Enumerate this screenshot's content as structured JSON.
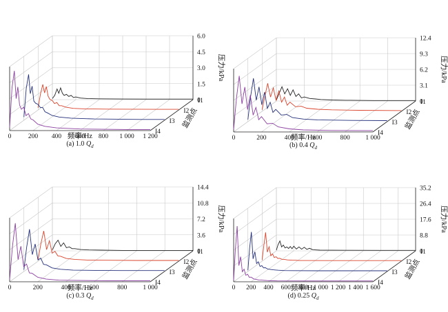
{
  "figure": {
    "colors": {
      "I1": "#222222",
      "I2": "#d9432b",
      "I3": "#232f7a",
      "I4": "#8b3fa0"
    },
    "monitor_axis_label": "监测点",
    "pressure_axis_label": "压力/kPa",
    "frequency_axis_label": "频率/Hz"
  },
  "chart_data": [
    {
      "type": "line",
      "caption_prefix": "(a) 1.0 ",
      "caption_var": "Q",
      "caption_sub": "d",
      "x_ticks": [
        "0",
        "200",
        "400",
        "600",
        "800",
        "1 000",
        "1 200"
      ],
      "xlim": [
        0,
        1200
      ],
      "z_ticks": [
        "0",
        "1.5",
        "3.0",
        "4.5",
        "6.0"
      ],
      "zlim": [
        0,
        6.0
      ],
      "monitor_points": [
        "I1",
        "I2",
        "I3",
        "I4"
      ],
      "series": [
        {
          "name": "I1",
          "x": [
            0,
            20,
            40,
            55,
            70,
            85,
            100,
            120,
            140,
            160,
            180,
            200,
            240,
            300,
            400,
            600,
            800,
            1000,
            1200
          ],
          "values": [
            0.1,
            0.4,
            1.0,
            0.6,
            1.1,
            0.6,
            0.4,
            0.5,
            0.3,
            0.4,
            0.2,
            0.25,
            0.15,
            0.1,
            0.08,
            0.06,
            0.05,
            0.05,
            0.05
          ]
        },
        {
          "name": "I2",
          "x": [
            0,
            20,
            40,
            55,
            70,
            85,
            100,
            120,
            140,
            160,
            180,
            200,
            240,
            300,
            400,
            600,
            800,
            1000,
            1200
          ],
          "values": [
            0.2,
            1.5,
            2.4,
            1.6,
            2.2,
            1.3,
            1.0,
            0.9,
            0.6,
            0.7,
            0.4,
            0.4,
            0.25,
            0.15,
            0.1,
            0.08,
            0.07,
            0.06,
            0.06
          ]
        },
        {
          "name": "I3",
          "x": [
            0,
            20,
            40,
            55,
            70,
            85,
            100,
            120,
            140,
            160,
            180,
            200,
            240,
            300,
            400,
            600,
            800,
            1000,
            1200
          ],
          "values": [
            0.3,
            3.0,
            4.3,
            2.5,
            3.2,
            1.8,
            1.6,
            1.5,
            1.2,
            1.2,
            0.8,
            0.7,
            0.45,
            0.3,
            0.2,
            0.12,
            0.1,
            0.08,
            0.08
          ]
        },
        {
          "name": "I4",
          "x": [
            0,
            20,
            40,
            55,
            70,
            85,
            100,
            120,
            140,
            160,
            180,
            200,
            240,
            300,
            400,
            600,
            800,
            1000,
            1200
          ],
          "values": [
            0.3,
            4.0,
            5.6,
            3.0,
            4.1,
            2.4,
            2.0,
            2.2,
            1.4,
            1.6,
            1.1,
            1.0,
            0.6,
            0.4,
            0.25,
            0.15,
            0.12,
            0.1,
            0.1
          ]
        }
      ]
    },
    {
      "type": "line",
      "caption_prefix": "(b) 0.4 ",
      "caption_var": "Q",
      "caption_sub": "d",
      "x_ticks": [
        "0",
        "200",
        "400",
        "600",
        "800",
        "1 000"
      ],
      "xlim": [
        0,
        1000
      ],
      "z_ticks": [
        "0",
        "3.1",
        "6.2",
        "9.3",
        "12.4"
      ],
      "zlim": [
        0,
        12.4
      ],
      "monitor_points": [
        "I1",
        "I2",
        "I3",
        "I4"
      ],
      "series": [
        {
          "name": "I1",
          "x": [
            0,
            20,
            40,
            60,
            80,
            100,
            120,
            140,
            160,
            180,
            200,
            240,
            280,
            320,
            400,
            500,
            700,
            1000
          ],
          "values": [
            0.2,
            1.5,
            2.8,
            1.4,
            2.4,
            1.1,
            2.2,
            0.9,
            1.4,
            0.6,
            0.8,
            0.5,
            0.4,
            0.3,
            0.2,
            0.15,
            0.1,
            0.1
          ]
        },
        {
          "name": "I2",
          "x": [
            0,
            20,
            40,
            60,
            80,
            100,
            120,
            140,
            160,
            180,
            200,
            240,
            280,
            320,
            400,
            500,
            700,
            1000
          ],
          "values": [
            0.3,
            3.0,
            5.5,
            2.8,
            4.6,
            2.2,
            4.0,
            1.8,
            2.8,
            1.2,
            1.8,
            0.9,
            1.0,
            0.6,
            0.4,
            0.3,
            0.2,
            0.15
          ]
        },
        {
          "name": "I3",
          "x": [
            0,
            20,
            40,
            60,
            80,
            100,
            120,
            140,
            160,
            180,
            200,
            240,
            280,
            320,
            400,
            500,
            700,
            1000
          ],
          "values": [
            0.4,
            5.0,
            8.5,
            4.2,
            6.8,
            3.3,
            5.8,
            2.6,
            3.8,
            1.8,
            2.4,
            1.3,
            1.4,
            0.8,
            0.5,
            0.35,
            0.25,
            0.2
          ]
        },
        {
          "name": "I4",
          "x": [
            0,
            20,
            40,
            60,
            80,
            100,
            120,
            140,
            160,
            180,
            200,
            240,
            280,
            320,
            400,
            500,
            700,
            1000
          ],
          "values": [
            0.5,
            6.5,
            11.0,
            5.5,
            8.8,
            4.4,
            7.2,
            3.3,
            4.8,
            2.4,
            3.0,
            1.6,
            1.7,
            1.0,
            0.6,
            0.4,
            0.3,
            0.25
          ]
        }
      ]
    },
    {
      "type": "line",
      "caption_prefix": "(c) 0.3 ",
      "caption_var": "Q",
      "caption_sub": "d",
      "x_ticks": [
        "0",
        "200",
        "400",
        "600",
        "800",
        "1 000"
      ],
      "xlim": [
        0,
        1000
      ],
      "z_ticks": [
        "0",
        "3.6",
        "7.2",
        "10.8",
        "14.4"
      ],
      "zlim": [
        0,
        14.4
      ],
      "monitor_points": [
        "I1",
        "I2",
        "I3",
        "I4"
      ],
      "series": [
        {
          "name": "I1",
          "x": [
            0,
            20,
            40,
            60,
            80,
            100,
            120,
            140,
            160,
            200,
            260,
            350,
            500,
            700,
            1000
          ],
          "values": [
            0.2,
            1.6,
            2.4,
            1.0,
            1.8,
            0.7,
            0.9,
            0.5,
            0.5,
            0.3,
            0.2,
            0.15,
            0.1,
            0.1,
            0.1
          ]
        },
        {
          "name": "I2",
          "x": [
            0,
            20,
            40,
            60,
            80,
            100,
            120,
            140,
            160,
            200,
            260,
            350,
            500,
            700,
            1000
          ],
          "values": [
            0.3,
            4.0,
            6.8,
            2.6,
            4.6,
            1.8,
            2.2,
            1.2,
            1.1,
            0.6,
            0.4,
            0.25,
            0.2,
            0.15,
            0.15
          ]
        },
        {
          "name": "I3",
          "x": [
            0,
            20,
            40,
            60,
            80,
            100,
            120,
            140,
            160,
            200,
            260,
            350,
            500,
            700,
            1000
          ],
          "values": [
            0.4,
            5.5,
            9.5,
            3.8,
            6.2,
            2.6,
            3.0,
            1.6,
            1.5,
            0.8,
            0.5,
            0.3,
            0.25,
            0.2,
            0.2
          ]
        },
        {
          "name": "I4",
          "x": [
            0,
            20,
            40,
            60,
            80,
            100,
            120,
            140,
            160,
            200,
            260,
            350,
            500,
            700,
            1000
          ],
          "values": [
            0.5,
            8.0,
            13.2,
            5.0,
            8.0,
            3.4,
            4.0,
            2.0,
            1.9,
            1.0,
            0.6,
            0.35,
            0.3,
            0.25,
            0.25
          ]
        }
      ]
    },
    {
      "type": "line",
      "caption_prefix": "(d) 0.25 ",
      "caption_var": "Q",
      "caption_sub": "d",
      "x_ticks": [
        "0",
        "200",
        "400",
        "600",
        "800",
        "1 000",
        "1 200",
        "1 400",
        "1 600"
      ],
      "xlim": [
        0,
        1600
      ],
      "z_ticks": [
        "0",
        "8.8",
        "17.6",
        "26.4",
        "35.2"
      ],
      "zlim": [
        0,
        35.2
      ],
      "monitor_points": [
        "I1",
        "I2",
        "I3",
        "I4"
      ],
      "series": [
        {
          "name": "I1",
          "x": [
            0,
            20,
            40,
            60,
            80,
            100,
            120,
            140,
            160,
            180,
            200,
            230,
            260,
            290,
            320,
            350,
            380,
            420,
            500,
            800,
            1200,
            1600
          ],
          "values": [
            0.4,
            3.5,
            5.5,
            2.2,
            3.2,
            1.6,
            2.2,
            1.3,
            2.4,
            1.2,
            2.6,
            1.0,
            2.2,
            0.9,
            2.0,
            0.8,
            1.4,
            0.6,
            0.4,
            0.3,
            0.25,
            0.25
          ]
        },
        {
          "name": "I2",
          "x": [
            0,
            20,
            40,
            60,
            80,
            100,
            120,
            140,
            160,
            180,
            200,
            230,
            260,
            290,
            320,
            350,
            380,
            420,
            500,
            800,
            1200,
            1600
          ],
          "values": [
            0.6,
            9.0,
            16.0,
            5.0,
            8.0,
            3.0,
            4.0,
            2.0,
            2.5,
            1.5,
            1.6,
            1.0,
            0.9,
            0.7,
            0.6,
            0.5,
            0.5,
            0.4,
            0.35,
            0.3,
            0.3,
            0.3
          ]
        },
        {
          "name": "I3",
          "x": [
            0,
            20,
            40,
            60,
            80,
            100,
            120,
            140,
            160,
            180,
            200,
            230,
            260,
            290,
            320,
            350,
            380,
            420,
            500,
            800,
            1200,
            1600
          ],
          "values": [
            0.7,
            13.0,
            22.0,
            7.0,
            11.0,
            4.4,
            5.4,
            2.8,
            3.2,
            2.0,
            2.1,
            1.3,
            1.1,
            0.9,
            0.8,
            0.7,
            0.6,
            0.5,
            0.45,
            0.4,
            0.4,
            0.4
          ]
        },
        {
          "name": "I4",
          "x": [
            0,
            20,
            40,
            60,
            80,
            100,
            120,
            140,
            160,
            180,
            200,
            230,
            260,
            290,
            320,
            350,
            380,
            420,
            500,
            800,
            1200,
            1600
          ],
          "values": [
            0.8,
            18.0,
            31.0,
            9.0,
            14.0,
            5.6,
            7.0,
            3.6,
            4.2,
            2.5,
            2.6,
            1.6,
            1.3,
            1.0,
            0.9,
            0.8,
            0.7,
            0.6,
            0.5,
            0.45,
            0.45,
            0.45
          ]
        }
      ]
    }
  ]
}
